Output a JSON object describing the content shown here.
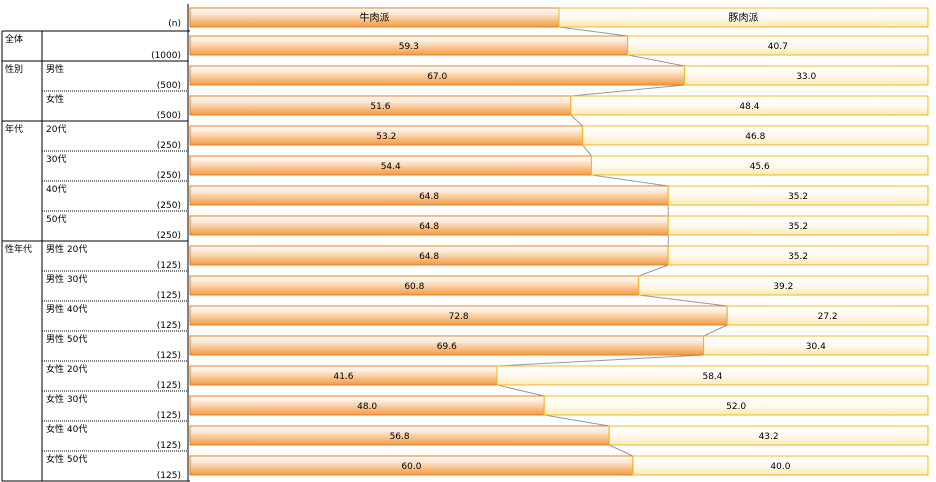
{
  "chart_data": {
    "type": "bar",
    "stacked": true,
    "orientation": "horizontal",
    "n_header": "(n)",
    "series": [
      {
        "name": "牛肉派",
        "color": "#f39a42"
      },
      {
        "name": "豚肉派",
        "color": "#f5c342"
      }
    ],
    "groups": [
      {
        "label": "全体",
        "rows": [
          {
            "label": "",
            "n": "(1000)",
            "values": [
              59.3,
              40.7
            ]
          }
        ]
      },
      {
        "label": "性別",
        "rows": [
          {
            "label": "男性",
            "n": "(500)",
            "values": [
              67.0,
              33.0
            ]
          },
          {
            "label": "女性",
            "n": "(500)",
            "values": [
              51.6,
              48.4
            ]
          }
        ]
      },
      {
        "label": "年代",
        "rows": [
          {
            "label": "20代",
            "n": "(250)",
            "values": [
              53.2,
              46.8
            ]
          },
          {
            "label": "30代",
            "n": "(250)",
            "values": [
              54.4,
              45.6
            ]
          },
          {
            "label": "40代",
            "n": "(250)",
            "values": [
              64.8,
              35.2
            ]
          },
          {
            "label": "50代",
            "n": "(250)",
            "values": [
              64.8,
              35.2
            ]
          }
        ]
      },
      {
        "label": "性年代",
        "rows": [
          {
            "label": "男性 20代",
            "n": "(125)",
            "values": [
              64.8,
              35.2
            ]
          },
          {
            "label": "男性 30代",
            "n": "(125)",
            "values": [
              60.8,
              39.2
            ]
          },
          {
            "label": "男性 40代",
            "n": "(125)",
            "values": [
              72.8,
              27.2
            ]
          },
          {
            "label": "男性 50代",
            "n": "(125)",
            "values": [
              69.6,
              30.4
            ]
          },
          {
            "label": "女性 20代",
            "n": "(125)",
            "values": [
              41.6,
              58.4
            ]
          },
          {
            "label": "女性 30代",
            "n": "(125)",
            "values": [
              48.0,
              52.0
            ]
          },
          {
            "label": "女性 40代",
            "n": "(125)",
            "values": [
              56.8,
              43.2
            ]
          },
          {
            "label": "女性 50代",
            "n": "(125)",
            "values": [
              60.0,
              40.0
            ]
          }
        ]
      }
    ],
    "xlim": [
      0,
      100
    ],
    "legend_position": "top"
  }
}
